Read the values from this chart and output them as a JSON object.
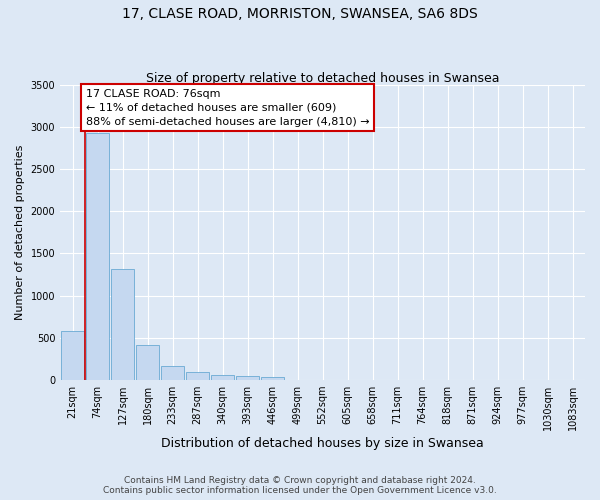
{
  "title": "17, CLASE ROAD, MORRISTON, SWANSEA, SA6 8DS",
  "subtitle": "Size of property relative to detached houses in Swansea",
  "xlabel": "Distribution of detached houses by size in Swansea",
  "ylabel": "Number of detached properties",
  "categories": [
    "21sqm",
    "74sqm",
    "127sqm",
    "180sqm",
    "233sqm",
    "287sqm",
    "340sqm",
    "393sqm",
    "446sqm",
    "499sqm",
    "552sqm",
    "605sqm",
    "658sqm",
    "711sqm",
    "764sqm",
    "818sqm",
    "871sqm",
    "924sqm",
    "977sqm",
    "1030sqm",
    "1083sqm"
  ],
  "values": [
    575,
    2920,
    1310,
    415,
    165,
    90,
    55,
    45,
    40,
    0,
    0,
    0,
    0,
    0,
    0,
    0,
    0,
    0,
    0,
    0,
    0
  ],
  "bar_color": "#c5d8f0",
  "bar_edge_color": "#6aaad4",
  "vline_x": 0.5,
  "annotation_text": "17 CLASE ROAD: 76sqm\n← 11% of detached houses are smaller (609)\n88% of semi-detached houses are larger (4,810) →",
  "annotation_box_facecolor": "#ffffff",
  "annotation_box_edgecolor": "#cc0000",
  "ylim": [
    0,
    3500
  ],
  "yticks": [
    0,
    500,
    1000,
    1500,
    2000,
    2500,
    3000,
    3500
  ],
  "bg_color": "#dde8f5",
  "footer_text": "Contains HM Land Registry data © Crown copyright and database right 2024.\nContains public sector information licensed under the Open Government Licence v3.0.",
  "title_fontsize": 10,
  "subtitle_fontsize": 9,
  "ylabel_fontsize": 8,
  "xlabel_fontsize": 9,
  "tick_fontsize": 7,
  "annotation_fontsize": 8,
  "footer_fontsize": 6.5,
  "vline_color": "#cc0000"
}
